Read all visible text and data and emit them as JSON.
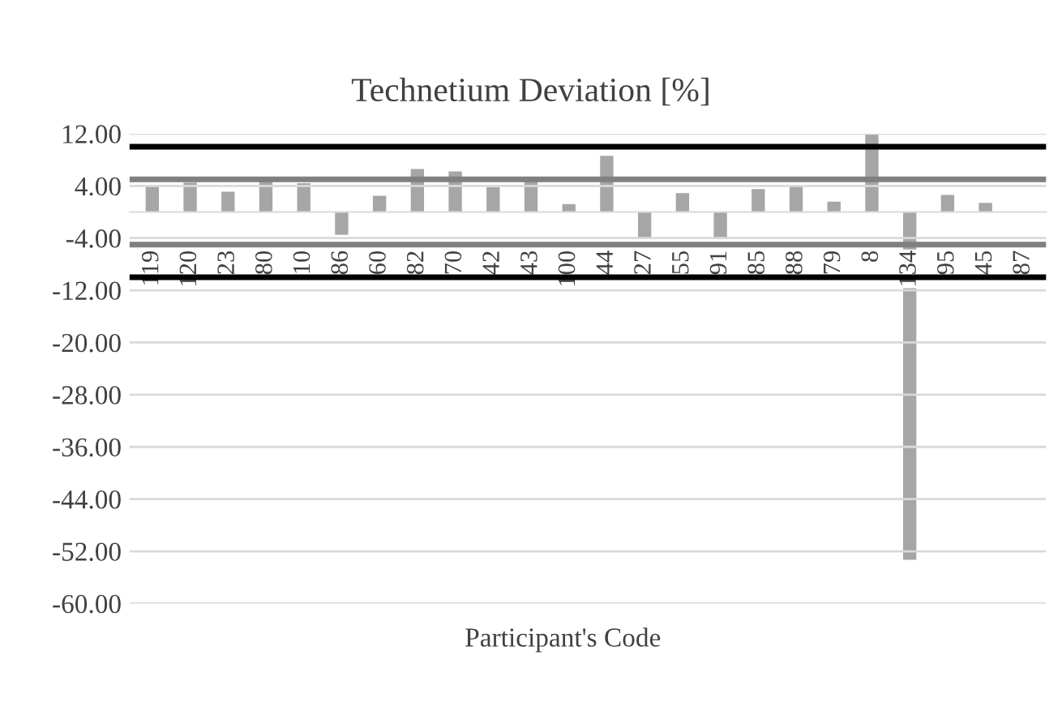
{
  "chart_data": {
    "type": "bar",
    "title": "Technetium Deviation [%]",
    "xlabel": "Participant's Code",
    "categories": [
      "119",
      "120",
      "23",
      "80",
      "10",
      "86",
      "60",
      "82",
      "70",
      "42",
      "43",
      "100",
      "44",
      "27",
      "55",
      "91",
      "85",
      "88",
      "79",
      "8",
      "134",
      "95",
      "45",
      "87"
    ],
    "series": [
      {
        "color": "#a6a6a6",
        "values": [
          4.0,
          4.5,
          3.1,
          4.9,
          4.4,
          -3.5,
          2.5,
          6.6,
          6.2,
          3.8,
          4.9,
          1.2,
          8.6,
          -4.1,
          2.9,
          -4.1,
          3.5,
          4.0,
          1.6,
          12.0,
          -53.3,
          2.6,
          1.4,
          0
        ]
      }
    ],
    "ylim": [
      -60,
      12
    ],
    "yticks": [
      {
        "value": 12,
        "label": "12.00"
      },
      {
        "value": 4,
        "label": "4.00"
      },
      {
        "value": -4,
        "label": "-4.00"
      },
      {
        "value": -12,
        "label": "-12.00"
      },
      {
        "value": -20,
        "label": "-20.00"
      },
      {
        "value": -28,
        "label": "-28.00"
      },
      {
        "value": -36,
        "label": "-36.00"
      },
      {
        "value": -44,
        "label": "-44.00"
      },
      {
        "value": -52,
        "label": "-52.00"
      },
      {
        "value": -60,
        "label": "-60.00"
      }
    ],
    "grid": "y",
    "legend": false,
    "ref_lines": [
      {
        "axis": "y",
        "value": 10,
        "color": "#000000"
      },
      {
        "axis": "y",
        "value": 5,
        "color": "#808080"
      },
      {
        "axis": "y",
        "value": -5,
        "color": "#808080"
      },
      {
        "axis": "y",
        "value": -10,
        "color": "#000000"
      }
    ]
  }
}
